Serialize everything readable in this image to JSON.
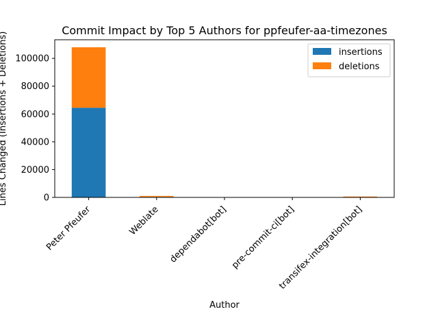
{
  "chart_data": {
    "type": "bar",
    "stacked": true,
    "title": "Commit Impact by Top 5 Authors for ppfeufer-aa-timezones",
    "xlabel": "Author",
    "ylabel": "Lines Changed (Insertions + Deletions)",
    "categories": [
      "Peter Pfeufer",
      "Weblate",
      "dependabot[bot]",
      "pre-commit-ci[bot]",
      "transifex-integration[bot]"
    ],
    "series": [
      {
        "name": "insertions",
        "color": "#1f77b4",
        "values": [
          64500,
          350,
          20,
          15,
          150
        ]
      },
      {
        "name": "deletions",
        "color": "#ff7f0e",
        "values": [
          43500,
          700,
          20,
          15,
          450
        ]
      }
    ],
    "ylim": [
      0,
      113400
    ],
    "yticks": [
      0,
      20000,
      40000,
      60000,
      80000,
      100000
    ],
    "ytick_labels": [
      "0",
      "20000",
      "40000",
      "60000",
      "80000",
      "100000"
    ],
    "legend": "top-right",
    "grid": false
  }
}
